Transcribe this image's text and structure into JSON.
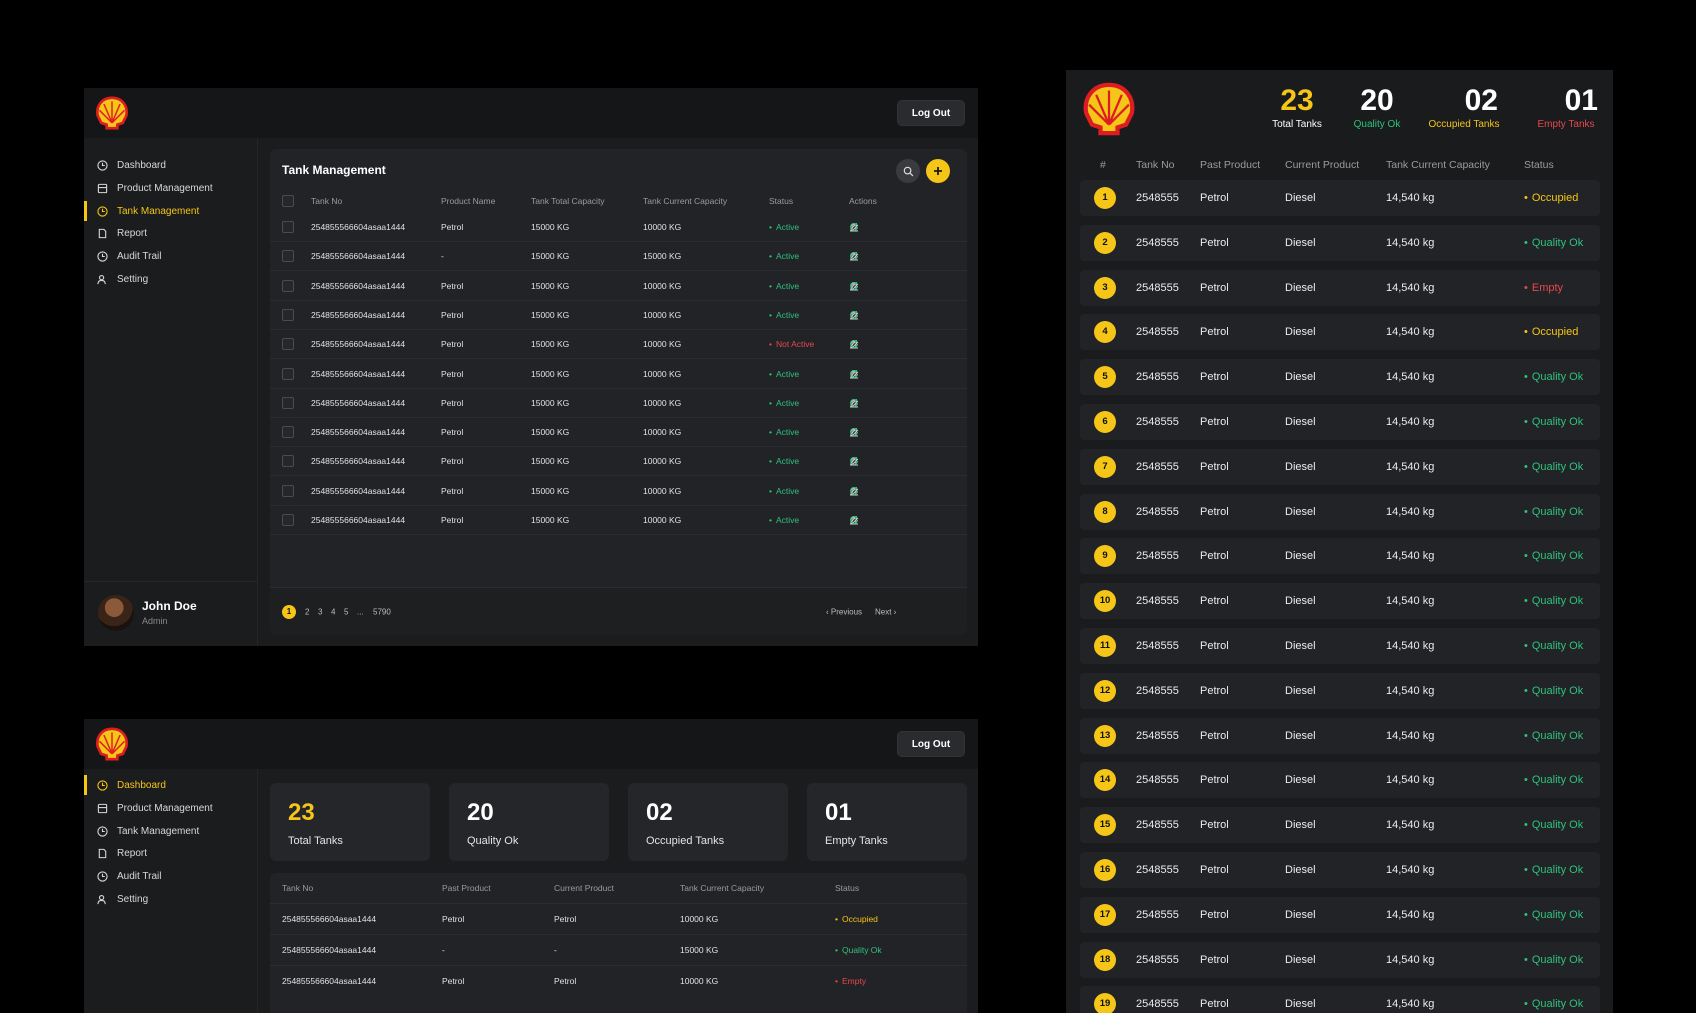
{
  "colors": {
    "accent": "#f5c518",
    "ok": "#2ec27e",
    "danger": "#e5484d",
    "panel": "#1b1c1e"
  },
  "tank_screen": {
    "header": {
      "logout_label": "Log Out"
    },
    "sidebar": {
      "items": [
        {
          "label": "Dashboard",
          "icon": "clock-icon"
        },
        {
          "label": "Product Management",
          "icon": "box-icon"
        },
        {
          "label": "Tank Management",
          "icon": "clock-icon"
        },
        {
          "label": "Report",
          "icon": "document-icon"
        },
        {
          "label": "Audit Trail",
          "icon": "clock-icon"
        },
        {
          "label": "Setting",
          "icon": "user-gear-icon"
        }
      ],
      "active": "Tank Management"
    },
    "user": {
      "name": "John Doe",
      "role": "Admin"
    },
    "title": "Tank Management",
    "columns": [
      "Tank No",
      "Product Name",
      "Tank Total Capacity",
      "Tank Current Capacity",
      "Status",
      "Actions"
    ],
    "rows": [
      {
        "tank_no": "254855566604asaa1444",
        "product": "Petrol",
        "total": "15000 KG",
        "current": "10000 KG",
        "status": "Active"
      },
      {
        "tank_no": "254855566604asaa1444",
        "product": "-",
        "total": "15000 KG",
        "current": "15000 KG",
        "status": "Active"
      },
      {
        "tank_no": "254855566604asaa1444",
        "product": "Petrol",
        "total": "15000 KG",
        "current": "10000 KG",
        "status": "Active"
      },
      {
        "tank_no": "254855566604asaa1444",
        "product": "Petrol",
        "total": "15000 KG",
        "current": "10000 KG",
        "status": "Active"
      },
      {
        "tank_no": "254855566604asaa1444",
        "product": "Petrol",
        "total": "15000 KG",
        "current": "10000 KG",
        "status": "Not Active"
      },
      {
        "tank_no": "254855566604asaa1444",
        "product": "Petrol",
        "total": "15000 KG",
        "current": "10000 KG",
        "status": "Active"
      },
      {
        "tank_no": "254855566604asaa1444",
        "product": "Petrol",
        "total": "15000 KG",
        "current": "10000 KG",
        "status": "Active"
      },
      {
        "tank_no": "254855566604asaa1444",
        "product": "Petrol",
        "total": "15000 KG",
        "current": "10000 KG",
        "status": "Active"
      },
      {
        "tank_no": "254855566604asaa1444",
        "product": "Petrol",
        "total": "15000 KG",
        "current": "10000 KG",
        "status": "Active"
      },
      {
        "tank_no": "254855566604asaa1444",
        "product": "Petrol",
        "total": "15000 KG",
        "current": "10000 KG",
        "status": "Active"
      },
      {
        "tank_no": "254855566604asaa1444",
        "product": "Petrol",
        "total": "15000 KG",
        "current": "10000 KG",
        "status": "Active"
      }
    ],
    "pagination": {
      "pages": [
        "1",
        "2",
        "3",
        "4",
        "5",
        "...",
        "5790"
      ],
      "current": "1",
      "previous": "‹ Previous",
      "next": "Next ›"
    }
  },
  "dashboard_screen": {
    "header": {
      "logout_label": "Log Out"
    },
    "sidebar": {
      "items": [
        {
          "label": "Dashboard",
          "icon": "clock-icon"
        },
        {
          "label": "Product Management",
          "icon": "box-icon"
        },
        {
          "label": "Tank Management",
          "icon": "clock-icon"
        },
        {
          "label": "Report",
          "icon": "document-icon"
        },
        {
          "label": "Audit Trail",
          "icon": "clock-icon"
        },
        {
          "label": "Setting",
          "icon": "user-gear-icon"
        }
      ],
      "active": "Dashboard"
    },
    "stats": [
      {
        "value": "23",
        "label": "Total Tanks"
      },
      {
        "value": "20",
        "label": "Quality Ok"
      },
      {
        "value": "02",
        "label": "Occupied Tanks"
      },
      {
        "value": "01",
        "label": "Empty Tanks"
      }
    ],
    "columns": [
      "Tank No",
      "Past Product",
      "Current Product",
      "Tank Current Capacity",
      "Status"
    ],
    "rows": [
      {
        "tank_no": "254855566604asaa1444",
        "past": "Petrol",
        "current_product": "Petrol",
        "capacity": "10000 KG",
        "status": "Occupied"
      },
      {
        "tank_no": "254855566604asaa1444",
        "past": "-",
        "current_product": "-",
        "capacity": "15000 KG",
        "status": "Quality Ok"
      },
      {
        "tank_no": "254855566604asaa1444",
        "past": "Petrol",
        "current_product": "Petrol",
        "capacity": "10000 KG",
        "status": "Empty"
      }
    ]
  },
  "display_screen": {
    "stats": [
      {
        "value": "23",
        "label": "Total Tanks"
      },
      {
        "value": "20",
        "label": "Quality Ok"
      },
      {
        "value": "02",
        "label": "Occupied Tanks"
      },
      {
        "value": "01",
        "label": "Empty Tanks"
      }
    ],
    "columns": [
      "#",
      "Tank No",
      "Past Product",
      "Current Product",
      "Tank Current Capacity",
      "Status"
    ],
    "rows": [
      {
        "n": "1",
        "tank_no": "2548555",
        "past": "Petrol",
        "current": "Diesel",
        "capacity": "14,540 kg",
        "status": "Occupied"
      },
      {
        "n": "2",
        "tank_no": "2548555",
        "past": "Petrol",
        "current": "Diesel",
        "capacity": "14,540 kg",
        "status": "Quality Ok"
      },
      {
        "n": "3",
        "tank_no": "2548555",
        "past": "Petrol",
        "current": "Diesel",
        "capacity": "14,540 kg",
        "status": "Empty"
      },
      {
        "n": "4",
        "tank_no": "2548555",
        "past": "Petrol",
        "current": "Diesel",
        "capacity": "14,540 kg",
        "status": "Occupied"
      },
      {
        "n": "5",
        "tank_no": "2548555",
        "past": "Petrol",
        "current": "Diesel",
        "capacity": "14,540 kg",
        "status": "Quality Ok"
      },
      {
        "n": "6",
        "tank_no": "2548555",
        "past": "Petrol",
        "current": "Diesel",
        "capacity": "14,540 kg",
        "status": "Quality Ok"
      },
      {
        "n": "7",
        "tank_no": "2548555",
        "past": "Petrol",
        "current": "Diesel",
        "capacity": "14,540 kg",
        "status": "Quality Ok"
      },
      {
        "n": "8",
        "tank_no": "2548555",
        "past": "Petrol",
        "current": "Diesel",
        "capacity": "14,540 kg",
        "status": "Quality Ok"
      },
      {
        "n": "9",
        "tank_no": "2548555",
        "past": "Petrol",
        "current": "Diesel",
        "capacity": "14,540 kg",
        "status": "Quality Ok"
      },
      {
        "n": "10",
        "tank_no": "2548555",
        "past": "Petrol",
        "current": "Diesel",
        "capacity": "14,540 kg",
        "status": "Quality Ok"
      },
      {
        "n": "11",
        "tank_no": "2548555",
        "past": "Petrol",
        "current": "Diesel",
        "capacity": "14,540 kg",
        "status": "Quality Ok"
      },
      {
        "n": "12",
        "tank_no": "2548555",
        "past": "Petrol",
        "current": "Diesel",
        "capacity": "14,540 kg",
        "status": "Quality Ok"
      },
      {
        "n": "13",
        "tank_no": "2548555",
        "past": "Petrol",
        "current": "Diesel",
        "capacity": "14,540 kg",
        "status": "Quality Ok"
      },
      {
        "n": "14",
        "tank_no": "2548555",
        "past": "Petrol",
        "current": "Diesel",
        "capacity": "14,540 kg",
        "status": "Quality Ok"
      },
      {
        "n": "15",
        "tank_no": "2548555",
        "past": "Petrol",
        "current": "Diesel",
        "capacity": "14,540 kg",
        "status": "Quality Ok"
      },
      {
        "n": "16",
        "tank_no": "2548555",
        "past": "Petrol",
        "current": "Diesel",
        "capacity": "14,540 kg",
        "status": "Quality Ok"
      },
      {
        "n": "17",
        "tank_no": "2548555",
        "past": "Petrol",
        "current": "Diesel",
        "capacity": "14,540 kg",
        "status": "Quality Ok"
      },
      {
        "n": "18",
        "tank_no": "2548555",
        "past": "Petrol",
        "current": "Diesel",
        "capacity": "14,540 kg",
        "status": "Quality Ok"
      },
      {
        "n": "19",
        "tank_no": "2548555",
        "past": "Petrol",
        "current": "Diesel",
        "capacity": "14,540 kg",
        "status": "Quality Ok"
      }
    ]
  }
}
